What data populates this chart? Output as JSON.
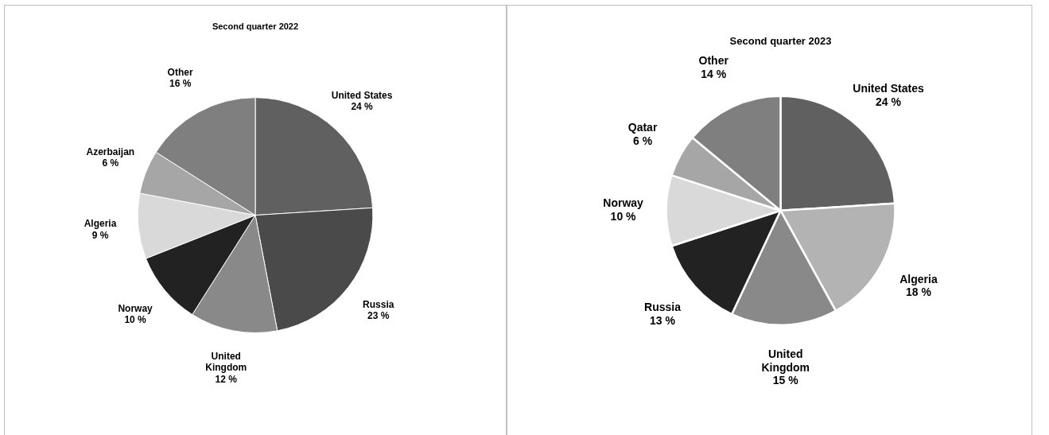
{
  "chart_data": [
    {
      "type": "pie",
      "title": "Second quarter 2022",
      "categories": [
        "United States",
        "Russia",
        "United Kingdom",
        "Norway",
        "Algeria",
        "Azerbaijan",
        "Other"
      ],
      "values": [
        24,
        23,
        12,
        10,
        9,
        6,
        16
      ],
      "value_labels": [
        "24 %",
        "23 %",
        "12 %",
        "10 %",
        "9 %",
        "6 %",
        "16 %"
      ],
      "colors": [
        "#606060",
        "#4a4a4a",
        "#898989",
        "#222222",
        "#d9d9d9",
        "#a6a6a6",
        "#7f7f7f"
      ],
      "legend": false
    },
    {
      "type": "pie",
      "title": "Second quarter 2023",
      "categories": [
        "United States",
        "Algeria",
        "United Kingdom",
        "Russia",
        "Norway",
        "Qatar",
        "Other"
      ],
      "values": [
        24,
        18,
        15,
        13,
        10,
        6,
        14
      ],
      "value_labels": [
        "24 %",
        "18 %",
        "15 %",
        "13 %",
        "10 %",
        "6 %",
        "14 %"
      ],
      "colors": [
        "#606060",
        "#b3b3b3",
        "#898989",
        "#222222",
        "#d9d9d9",
        "#a6a6a6",
        "#7f7f7f"
      ],
      "legend": false
    }
  ]
}
